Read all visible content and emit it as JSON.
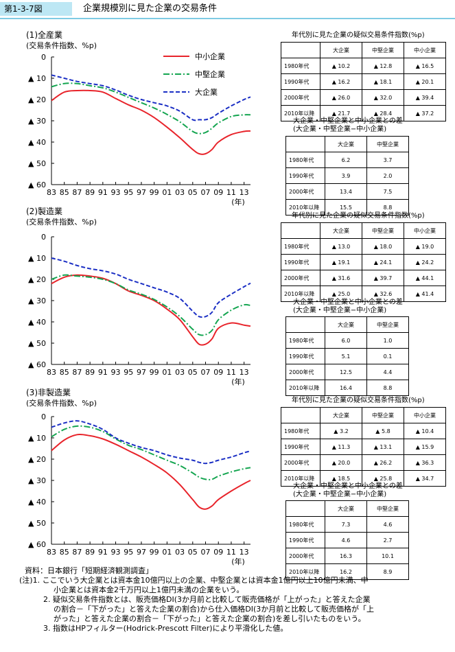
{
  "header": {
    "figure_label": "第1-3-7図",
    "title": "企業規模別に見た企業の交易条件"
  },
  "legend": {
    "small": "中小企業",
    "mid": "中堅企業",
    "large": "大企業"
  },
  "colors": {
    "small": "#e8232a",
    "mid": "#14a550",
    "large": "#1a2ec4"
  },
  "chart_data": [
    {
      "type": "line",
      "title": "(1)全産業",
      "ylabel": "(交易条件指数、%p)",
      "xlabel": "(年)",
      "y_ticks": [
        "0",
        "▲ 10",
        "▲ 20",
        "▲ 30",
        "▲ 40",
        "▲ 50",
        "▲ 60"
      ],
      "x_ticks": [
        "83",
        "85",
        "87",
        "89",
        "91",
        "93",
        "95",
        "97",
        "99",
        "01",
        "03",
        "05",
        "07",
        "09",
        "11",
        "13"
      ],
      "ylim": [
        -60,
        0
      ],
      "xlim": [
        1983,
        2014
      ],
      "x": [
        1983,
        1985,
        1987,
        1989,
        1991,
        1993,
        1995,
        1997,
        1999,
        2001,
        2003,
        2005,
        2006,
        2007,
        2008,
        2009,
        2011,
        2013,
        2014
      ],
      "series": [
        {
          "name": "中小企業",
          "values": [
            -20.5,
            -16.5,
            -15.8,
            -15.8,
            -16.5,
            -19.5,
            -22.5,
            -25,
            -28.5,
            -33,
            -38,
            -43.5,
            -45.5,
            -45.5,
            -43.5,
            -40,
            -36.5,
            -35,
            -34.8
          ]
        },
        {
          "name": "中堅企業",
          "values": [
            -14,
            -12.5,
            -12.5,
            -13.5,
            -14.5,
            -16.5,
            -19,
            -21.5,
            -24,
            -27,
            -30.5,
            -35,
            -36,
            -35.5,
            -33.5,
            -31,
            -28,
            -27.2,
            -27.2
          ]
        },
        {
          "name": "大企業",
          "values": [
            -8.5,
            -10,
            -11.5,
            -12.5,
            -13.5,
            -15.5,
            -18,
            -20,
            -21.5,
            -23,
            -25.5,
            -29.5,
            -29.5,
            -29.5,
            -28.5,
            -26.5,
            -23,
            -20,
            -18.8
          ]
        }
      ]
    },
    {
      "type": "line",
      "title": "(2)製造業",
      "ylabel": "(交易条件指数、%p)",
      "xlabel": "(年)",
      "y_ticks": [
        "0",
        "▲ 10",
        "▲ 20",
        "▲ 30",
        "▲ 40",
        "▲ 50",
        "▲ 60"
      ],
      "x_ticks": [
        "83",
        "85",
        "87",
        "89",
        "91",
        "93",
        "95",
        "97",
        "99",
        "01",
        "03",
        "05",
        "07",
        "09",
        "11",
        "13"
      ],
      "ylim": [
        -60,
        0
      ],
      "xlim": [
        1983,
        2014
      ],
      "x": [
        1983,
        1985,
        1987,
        1989,
        1991,
        1993,
        1995,
        1997,
        1999,
        2001,
        2003,
        2005,
        2006,
        2007,
        2008,
        2009,
        2011,
        2013,
        2014
      ],
      "series": [
        {
          "name": "中小企業",
          "values": [
            -22,
            -19,
            -18,
            -18.5,
            -19.5,
            -22,
            -25.5,
            -27.5,
            -30,
            -34,
            -39,
            -47,
            -50.5,
            -50.5,
            -48,
            -43,
            -40.5,
            -41.5,
            -42
          ]
        },
        {
          "name": "中堅企業",
          "values": [
            -20,
            -18,
            -18.5,
            -19,
            -20,
            -22,
            -25,
            -27,
            -29.5,
            -33,
            -37.5,
            -43.5,
            -46,
            -46,
            -44,
            -39,
            -34.5,
            -32,
            -32.3
          ]
        },
        {
          "name": "大企業",
          "values": [
            -10,
            -11.5,
            -13.5,
            -15,
            -16,
            -17.5,
            -20,
            -22,
            -24,
            -26,
            -29,
            -35,
            -37.5,
            -37.5,
            -35.5,
            -31,
            -27,
            -23.5,
            -21.8
          ]
        }
      ]
    },
    {
      "type": "line",
      "title": "(3)非製造業",
      "ylabel": "(交易条件指数、%p)",
      "xlabel": "(年)",
      "y_ticks": [
        "0",
        "▲ 10",
        "▲ 20",
        "▲ 30",
        "▲ 40",
        "▲ 50",
        "▲ 60"
      ],
      "x_ticks": [
        "83",
        "85",
        "87",
        "89",
        "91",
        "93",
        "95",
        "97",
        "99",
        "01",
        "03",
        "05",
        "07",
        "09",
        "11",
        "13"
      ],
      "ylim": [
        -60,
        0
      ],
      "xlim": [
        1983,
        2014
      ],
      "x": [
        1983,
        1985,
        1987,
        1989,
        1991,
        1993,
        1995,
        1997,
        1999,
        2001,
        2003,
        2005,
        2006,
        2007,
        2008,
        2009,
        2011,
        2013,
        2014
      ],
      "series": [
        {
          "name": "中小企業",
          "values": [
            -16,
            -11,
            -8.5,
            -9,
            -10.5,
            -13,
            -16,
            -19,
            -22.5,
            -26.5,
            -32,
            -39,
            -42.5,
            -43.5,
            -42,
            -39,
            -35,
            -31.5,
            -30
          ]
        },
        {
          "name": "中堅企業",
          "values": [
            -9.5,
            -6,
            -4.5,
            -5,
            -7,
            -10.5,
            -13.5,
            -15.5,
            -18,
            -20.5,
            -23,
            -26.5,
            -28.5,
            -29.5,
            -29.5,
            -28,
            -26,
            -24.5,
            -24
          ]
        },
        {
          "name": "大企業",
          "values": [
            -5,
            -3,
            -2,
            -3.5,
            -6,
            -10,
            -12.5,
            -14.5,
            -16,
            -18,
            -19.5,
            -20.5,
            -21.5,
            -22,
            -21.5,
            -20.5,
            -19,
            -17,
            -16.2
          ]
        }
      ]
    }
  ],
  "tables": [
    {
      "title1": "年代別に見た企業の疑似交易条件指数(%p)",
      "headers1": [
        "大企業",
        "中堅企業",
        "中小企業"
      ],
      "rows1": [
        {
          "label": "1980年代",
          "cells": [
            "▲ 10.2",
            "▲ 12.8",
            "▲ 16.5"
          ]
        },
        {
          "label": "1990年代",
          "cells": [
            "▲ 16.2",
            "▲ 18.1",
            "▲ 20.1"
          ]
        },
        {
          "label": "2000年代",
          "cells": [
            "▲ 26.0",
            "▲ 32.0",
            "▲ 39.4"
          ]
        },
        {
          "label": "2010年以降",
          "cells": [
            "▲ 21.7",
            "▲ 28.4",
            "▲ 37.2"
          ]
        }
      ],
      "title2a": "大企業・中堅企業と中小企業との差",
      "title2b": "(大企業・中堅企業−中小企業)",
      "headers2": [
        "大企業",
        "中堅企業"
      ],
      "rows2": [
        {
          "label": "1980年代",
          "cells": [
            "6.2",
            "3.7"
          ]
        },
        {
          "label": "1990年代",
          "cells": [
            "3.9",
            "2.0"
          ]
        },
        {
          "label": "2000年代",
          "cells": [
            "13.4",
            "7.5"
          ]
        },
        {
          "label": "2010年以降",
          "cells": [
            "15.5",
            "8.8"
          ]
        }
      ]
    },
    {
      "title1": "年代別に見た企業の疑似交易条件指数(%p)",
      "headers1": [
        "大企業",
        "中堅企業",
        "中小企業"
      ],
      "rows1": [
        {
          "label": "1980年代",
          "cells": [
            "▲ 13.0",
            "▲ 18.0",
            "▲ 19.0"
          ]
        },
        {
          "label": "1990年代",
          "cells": [
            "▲ 19.1",
            "▲ 24.1",
            "▲ 24.2"
          ]
        },
        {
          "label": "2000年代",
          "cells": [
            "▲ 31.6",
            "▲ 39.7",
            "▲ 44.1"
          ]
        },
        {
          "label": "2010年以降",
          "cells": [
            "▲ 25.0",
            "▲ 32.6",
            "▲ 41.4"
          ]
        }
      ],
      "title2a": "大企業・中堅企業と中小企業との差",
      "title2b": "(大企業・中堅企業−中小企業)",
      "headers2": [
        "大企業",
        "中堅企業"
      ],
      "rows2": [
        {
          "label": "1980年代",
          "cells": [
            "6.0",
            "1.0"
          ]
        },
        {
          "label": "1990年代",
          "cells": [
            "5.1",
            "0.1"
          ]
        },
        {
          "label": "2000年代",
          "cells": [
            "12.5",
            "4.4"
          ]
        },
        {
          "label": "2010年以降",
          "cells": [
            "16.4",
            "8.8"
          ]
        }
      ]
    },
    {
      "title1": "年代別に見た企業の疑似交易条件指数(%p)",
      "headers1": [
        "大企業",
        "中堅企業",
        "中小企業"
      ],
      "rows1": [
        {
          "label": "1980年代",
          "cells": [
            "▲ 3.2",
            "▲ 5.8",
            "▲ 10.4"
          ]
        },
        {
          "label": "1990年代",
          "cells": [
            "▲ 11.3",
            "▲ 13.1",
            "▲ 15.9"
          ]
        },
        {
          "label": "2000年代",
          "cells": [
            "▲ 20.0",
            "▲ 26.2",
            "▲ 36.3"
          ]
        },
        {
          "label": "2010年以降",
          "cells": [
            "▲ 18.5",
            "▲ 25.8",
            "▲ 34.7"
          ]
        }
      ],
      "title2a": "大企業・中堅企業と中小企業との差",
      "title2b": "(大企業・中堅企業−中小企業)",
      "headers2": [
        "大企業",
        "中堅企業"
      ],
      "rows2": [
        {
          "label": "1980年代",
          "cells": [
            "7.3",
            "4.6"
          ]
        },
        {
          "label": "1990年代",
          "cells": [
            "4.6",
            "2.7"
          ]
        },
        {
          "label": "2000年代",
          "cells": [
            "16.3",
            "10.1"
          ]
        },
        {
          "label": "2010年以降",
          "cells": [
            "16.2",
            "8.9"
          ]
        }
      ]
    }
  ],
  "notes": {
    "source": "資料：日本銀行「短期経済観測調査」",
    "n1a": "(注)1. ここでいう大企業とは資本金10億円以上の企業、中堅企業とは資本金1億円以上10億円未満、中",
    "n1b": "小企業とは資本金2千万円以上1億円未満の企業をいう。",
    "n2a": "2. 疑似交易条件指数とは、販売価格DI(3か月前と比較して販売価格が「上がった」と答えた企業",
    "n2b": "の割合－「下がった」と答えた企業の割合)から仕入価格DI(3か月前と比較して販売価格が「上",
    "n2c": "がった」と答えた企業の割合－「下がった」と答えた企業の割合)を差し引いたものをいう。",
    "n3": "3. 指数はHPフィルター(Hodrick-Prescott Filter)により平滑化した値。"
  }
}
